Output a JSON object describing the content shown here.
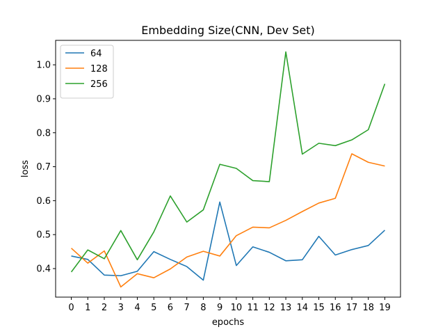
{
  "chart_data": {
    "type": "line",
    "title": "Embedding Size(CNN, Dev Set)",
    "xlabel": "epochs",
    "ylabel": "loss",
    "x": [
      0,
      1,
      2,
      3,
      4,
      5,
      6,
      7,
      8,
      9,
      10,
      11,
      12,
      13,
      14,
      15,
      16,
      17,
      18,
      19
    ],
    "xlim": [
      -0.95,
      19.95
    ],
    "ylim": [
      0.316,
      1.072
    ],
    "yticks": [
      0.4,
      0.5,
      0.6,
      0.7,
      0.8,
      0.9,
      1.0
    ],
    "ytick_labels": [
      "0.4",
      "0.5",
      "0.6",
      "0.7",
      "0.8",
      "0.9",
      "1.0"
    ],
    "grid": false,
    "legend_position": "top-left",
    "series": [
      {
        "name": "64",
        "color": "#1f77b4",
        "values": [
          0.437,
          0.427,
          0.381,
          0.379,
          0.392,
          0.45,
          0.427,
          0.406,
          0.366,
          0.596,
          0.409,
          0.464,
          0.448,
          0.423,
          0.426,
          0.495,
          0.44,
          0.456,
          0.468,
          0.513
        ]
      },
      {
        "name": "128",
        "color": "#ff7f0e",
        "values": [
          0.46,
          0.416,
          0.452,
          0.346,
          0.385,
          0.373,
          0.399,
          0.434,
          0.451,
          0.437,
          0.497,
          0.522,
          0.52,
          0.542,
          0.568,
          0.593,
          0.607,
          0.738,
          0.713,
          0.702
        ]
      },
      {
        "name": "256",
        "color": "#2ca02c",
        "values": [
          0.39,
          0.455,
          0.429,
          0.512,
          0.426,
          0.508,
          0.614,
          0.537,
          0.573,
          0.707,
          0.695,
          0.659,
          0.656,
          1.038,
          0.737,
          0.769,
          0.762,
          0.779,
          0.809,
          0.944
        ]
      }
    ]
  }
}
